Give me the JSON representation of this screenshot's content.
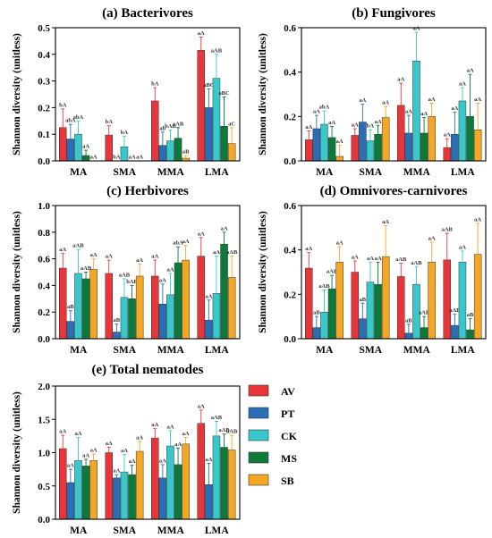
{
  "colors": {
    "AV": "#e8353a",
    "PT": "#2b6eb5",
    "CK": "#38c8cc",
    "MS": "#0d7a3a",
    "SB": "#f5a623"
  },
  "legend": [
    "AV",
    "PT",
    "CK",
    "MS",
    "SB"
  ],
  "chart_data": [
    {
      "type": "bar",
      "title": "(a) Bacterivores",
      "ylabel": "Shannon diversity (unitless)",
      "categories": [
        "MA",
        "SMA",
        "MMA",
        "LMA"
      ],
      "ylim": [
        0,
        0.5
      ],
      "yticks": [
        "0.0",
        "0.1",
        "0.2",
        "0.3",
        "0.4",
        "0.5"
      ],
      "series": [
        {
          "name": "AV",
          "values": [
            0.125,
            0.097,
            0.225,
            0.415
          ],
          "err": [
            0.07,
            0.035,
            0.05,
            0.05
          ],
          "labels": [
            "bA",
            "bA",
            "bA",
            "aA"
          ]
        },
        {
          "name": "PT",
          "values": [
            0.082,
            0.0,
            0.058,
            0.2
          ],
          "err": [
            0.055,
            0.0,
            0.05,
            0.07
          ],
          "labels": [
            "abA",
            "bA",
            "ab",
            "aBC"
          ]
        },
        {
          "name": "CK",
          "values": [
            0.1,
            0.053,
            0.075,
            0.31
          ],
          "err": [
            0.05,
            0.04,
            0.04,
            0.09
          ],
          "labels": [
            "abA",
            "bA",
            "bAB",
            "aAB"
          ]
        },
        {
          "name": "MS",
          "values": [
            0.02,
            0.0,
            0.085,
            0.13
          ],
          "err": [
            0.02,
            0.0,
            0.04,
            0.11
          ],
          "labels": [
            "aA",
            "aA",
            "aAB",
            "aBC"
          ]
        },
        {
          "name": "SB",
          "values": [
            0.0,
            0.0,
            0.01,
            0.065
          ],
          "err": [
            0.0,
            0.0,
            0.01,
            0.06
          ],
          "labels": [
            "aA",
            "aA",
            "aB",
            "aC"
          ]
        }
      ]
    },
    {
      "type": "bar",
      "title": "(b) Fungivores",
      "ylabel": "Shannon diversity (unitless)",
      "categories": [
        "MA",
        "SMA",
        "MMA",
        "LMA"
      ],
      "ylim": [
        0,
        0.6
      ],
      "yticks": [
        "0.0",
        "0.2",
        "0.4",
        "0.6"
      ],
      "series": [
        {
          "name": "AV",
          "values": [
            0.095,
            0.115,
            0.25,
            0.06
          ],
          "err": [
            0.04,
            0.03,
            0.1,
            0.04
          ],
          "labels": [
            "aA",
            "aA",
            "aA",
            "aA"
          ]
        },
        {
          "name": "PT",
          "values": [
            0.145,
            0.175,
            0.125,
            0.12
          ],
          "err": [
            0.06,
            0.08,
            0.08,
            0.1
          ],
          "labels": [
            "aA",
            "aA",
            "aA",
            "aA"
          ]
        },
        {
          "name": "CK",
          "values": [
            0.165,
            0.09,
            0.45,
            0.27
          ],
          "err": [
            0.06,
            0.05,
            0.13,
            0.06
          ],
          "labels": [
            "abA",
            "bA",
            "aA",
            "aA"
          ]
        },
        {
          "name": "MS",
          "values": [
            0.105,
            0.12,
            0.125,
            0.2
          ],
          "err": [
            0.05,
            0.04,
            0.07,
            0.19
          ],
          "labels": [
            "aA",
            "aA",
            "aA",
            "aA"
          ]
        },
        {
          "name": "SB",
          "values": [
            0.02,
            0.195,
            0.2,
            0.14
          ],
          "err": [
            0.05,
            0.05,
            0.06,
            0.12
          ],
          "labels": [
            "aA",
            "aA",
            "aA",
            "aA"
          ]
        }
      ]
    },
    {
      "type": "bar",
      "title": "(c) Herbivores",
      "ylabel": "Shannon diversity (unitless)",
      "categories": [
        "MA",
        "SMA",
        "MMA",
        "LMA"
      ],
      "ylim": [
        0,
        1.0
      ],
      "yticks": [
        "0.0",
        "0.2",
        "0.4",
        "0.6",
        "0.8",
        "1.0"
      ],
      "series": [
        {
          "name": "AV",
          "values": [
            0.53,
            0.49,
            0.47,
            0.62
          ],
          "err": [
            0.11,
            0.1,
            0.12,
            0.14
          ],
          "labels": [
            "aA",
            "aA",
            "aA",
            "aA"
          ]
        },
        {
          "name": "PT",
          "values": [
            0.13,
            0.05,
            0.26,
            0.14
          ],
          "err": [
            0.08,
            0.06,
            0.15,
            0.15
          ],
          "labels": [
            "aB",
            "aB",
            "aA",
            "aA"
          ]
        },
        {
          "name": "CK",
          "values": [
            0.49,
            0.31,
            0.33,
            0.34
          ],
          "err": [
            0.18,
            0.14,
            0.16,
            0.28
          ],
          "labels": [
            "aAB",
            "aAB",
            "aA",
            "aA"
          ]
        },
        {
          "name": "MS",
          "values": [
            0.45,
            0.3,
            0.57,
            0.71
          ],
          "err": [
            0.05,
            0.1,
            0.12,
            0.09
          ],
          "labels": [
            "aAB",
            "bAB",
            "abA",
            "aA"
          ]
        },
        {
          "name": "SB",
          "values": [
            0.52,
            0.47,
            0.59,
            0.46
          ],
          "err": [
            0.08,
            0.09,
            0.11,
            0.16
          ],
          "labels": [
            "aA",
            "aA",
            "aA",
            "aAB"
          ]
        }
      ]
    },
    {
      "type": "bar",
      "title": "(d) Omnivores-carnivores",
      "ylabel": "Shannon diversity (unitless)",
      "categories": [
        "MA",
        "SMA",
        "MMA",
        "LMA"
      ],
      "ylim": [
        0,
        0.6
      ],
      "yticks": [
        "0.0",
        "0.2",
        "0.4",
        "0.6"
      ],
      "series": [
        {
          "name": "AV",
          "values": [
            0.318,
            0.3,
            0.28,
            0.355
          ],
          "err": [
            0.07,
            0.05,
            0.06,
            0.12
          ],
          "labels": [
            "aA",
            "aA",
            "aAB",
            "aAB"
          ]
        },
        {
          "name": "PT",
          "values": [
            0.05,
            0.09,
            0.025,
            0.06
          ],
          "err": [
            0.05,
            0.07,
            0.04,
            0.05
          ],
          "labels": [
            "aB",
            "aB",
            "aB",
            "aAB"
          ]
        },
        {
          "name": "CK",
          "values": [
            0.12,
            0.255,
            0.245,
            0.345
          ],
          "err": [
            0.1,
            0.09,
            0.08,
            0.05
          ],
          "labels": [
            "aAB",
            "aA",
            "aAB",
            "aA"
          ]
        },
        {
          "name": "MS",
          "values": [
            0.225,
            0.245,
            0.05,
            0.04
          ],
          "err": [
            0.06,
            0.1,
            0.05,
            0.05
          ],
          "labels": [
            "aAB",
            "aA",
            "aAB",
            "aB"
          ]
        },
        {
          "name": "SB",
          "values": [
            0.345,
            0.37,
            0.345,
            0.38
          ],
          "err": [
            0.07,
            0.14,
            0.09,
            0.14
          ],
          "labels": [
            "aA",
            "aA",
            "aA",
            "aA"
          ]
        }
      ]
    },
    {
      "type": "bar",
      "title": "(e) Total nematodes",
      "ylabel": "Shannon diversity (unitless)",
      "categories": [
        "MA",
        "SMA",
        "MMA",
        "LMA"
      ],
      "ylim": [
        0,
        2.0
      ],
      "yticks": [
        "0.0",
        "0.5",
        "1.0",
        "1.5",
        "2.0"
      ],
      "series": [
        {
          "name": "AV",
          "values": [
            1.06,
            1.0,
            1.22,
            1.44
          ],
          "err": [
            0.2,
            0.08,
            0.14,
            0.2
          ],
          "labels": [
            "aA",
            "aA",
            "aA",
            "aA"
          ]
        },
        {
          "name": "PT",
          "values": [
            0.55,
            0.62,
            0.62,
            0.52
          ],
          "err": [
            0.2,
            0.05,
            0.2,
            0.32
          ],
          "labels": [
            "aA",
            "aA",
            "aA",
            "aA"
          ]
        },
        {
          "name": "CK",
          "values": [
            0.88,
            0.71,
            1.1,
            1.25
          ],
          "err": [
            0.35,
            0.26,
            0.23,
            0.22
          ],
          "labels": [
            "aA",
            "aA",
            "aA",
            "aAB"
          ]
        },
        {
          "name": "MS",
          "values": [
            0.8,
            0.67,
            0.82,
            1.08
          ],
          "err": [
            0.1,
            0.14,
            0.25,
            0.2
          ],
          "labels": [
            "aA",
            "aA",
            "aA",
            "aAB"
          ]
        },
        {
          "name": "SB",
          "values": [
            0.88,
            1.02,
            1.13,
            1.04
          ],
          "err": [
            0.1,
            0.15,
            0.1,
            0.22
          ],
          "labels": [
            "aA",
            "aA",
            "aA",
            "aAB"
          ]
        }
      ]
    }
  ]
}
